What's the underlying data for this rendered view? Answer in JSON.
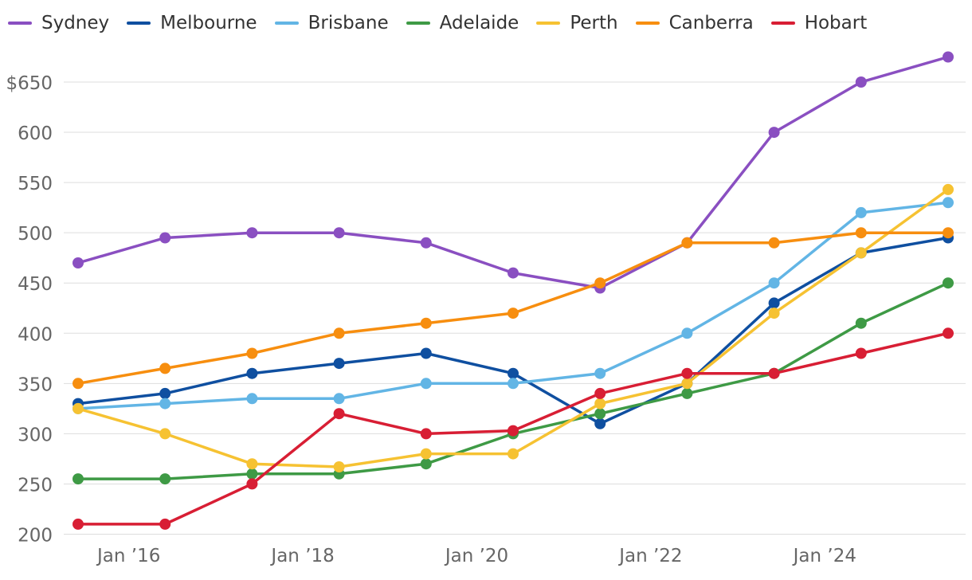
{
  "chart_data": {
    "type": "line",
    "title": "",
    "xlabel": "",
    "ylabel": "",
    "y_unit_prefix": "$",
    "ylim": [
      200,
      675
    ],
    "y_ticks": [
      200,
      250,
      300,
      350,
      400,
      450,
      500,
      550,
      600,
      650
    ],
    "y_tick_labels": [
      "200",
      "250",
      "300",
      "350",
      "400",
      "450",
      "500",
      "550",
      "600",
      "$650"
    ],
    "x_tick_labels": [
      "Jan ’16",
      "Jan ’18",
      "Jan ’20",
      "Jan ’22",
      "Jan ’24"
    ],
    "x_tick_dates": [
      "2016-01",
      "2018-01",
      "2020-01",
      "2022-01",
      "2024-01"
    ],
    "x": [
      "2015-06",
      "2016-06",
      "2017-06",
      "2018-06",
      "2019-06",
      "2020-06",
      "2021-06",
      "2022-06",
      "2023-06",
      "2024-06",
      "2025-06"
    ],
    "grid": true,
    "legend_position": "top-left",
    "series": [
      {
        "name": "Sydney",
        "color": "#8a4fc1",
        "values": [
          470,
          495,
          500,
          500,
          490,
          460,
          445,
          490,
          600,
          650,
          675
        ]
      },
      {
        "name": "Melbourne",
        "color": "#0f4fa0",
        "values": [
          330,
          340,
          360,
          370,
          380,
          360,
          310,
          350,
          430,
          480,
          495
        ]
      },
      {
        "name": "Brisbane",
        "color": "#62b5e5",
        "values": [
          325,
          330,
          335,
          335,
          350,
          350,
          360,
          400,
          450,
          520,
          530
        ]
      },
      {
        "name": "Adelaide",
        "color": "#3e9a45",
        "values": [
          255,
          255,
          260,
          260,
          270,
          300,
          320,
          340,
          360,
          410,
          450
        ]
      },
      {
        "name": "Perth",
        "color": "#f6c232",
        "values": [
          325,
          300,
          270,
          267,
          280,
          280,
          330,
          350,
          420,
          480,
          543
        ]
      },
      {
        "name": "Canberra",
        "color": "#f78e0f",
        "values": [
          350,
          365,
          380,
          400,
          410,
          420,
          450,
          490,
          490,
          500,
          500
        ]
      },
      {
        "name": "Hobart",
        "color": "#d81e34",
        "values": [
          210,
          210,
          250,
          320,
          300,
          303,
          340,
          360,
          360,
          380,
          400
        ]
      }
    ]
  }
}
